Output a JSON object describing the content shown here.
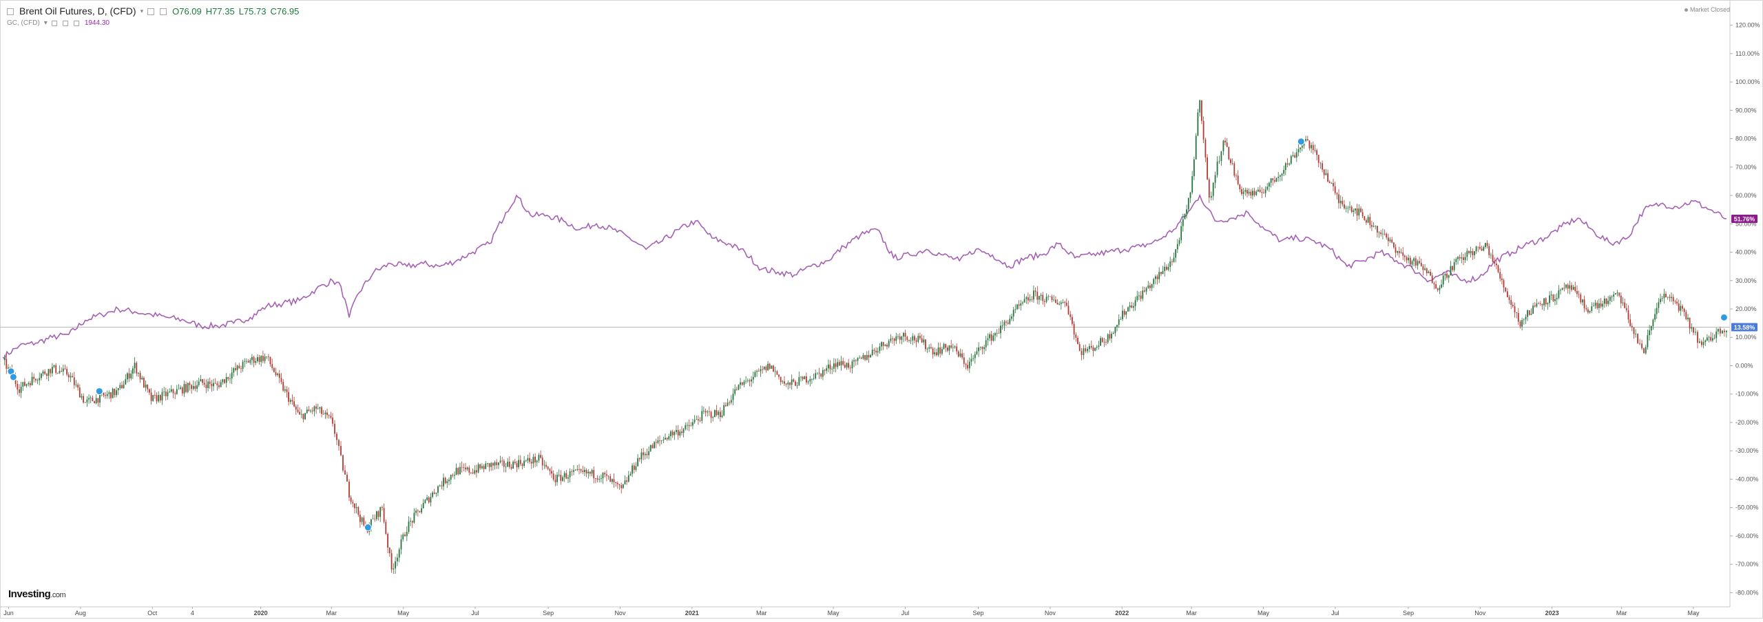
{
  "legend": {
    "title": "Brent Oil Futures, D, (CFD)",
    "open": "O76.09",
    "high": "H77.35",
    "low": "L75.73",
    "close": "C76.95",
    "gold_name": "GC, (CFD)",
    "gold_value": "1944.30"
  },
  "market_status": "Market Closed",
  "brand": {
    "name": "Investing",
    "suffix": ".com"
  },
  "chart_data": {
    "type": "line",
    "title": "",
    "xlabel": "",
    "ylabel": "",
    "y_unit": "%",
    "ylim": [
      -85,
      125
    ],
    "y_ticks": [
      120,
      110,
      100,
      90,
      80,
      70,
      60,
      50,
      40,
      30,
      20,
      10,
      0,
      -10,
      -20,
      -30,
      -40,
      -50,
      -60,
      -70,
      -80
    ],
    "x_range": [
      "2019-05-27",
      "2023-06-01"
    ],
    "x_ticks": [
      {
        "label": "Jun",
        "date": "2019-06-01"
      },
      {
        "label": "Aug",
        "date": "2019-08-01"
      },
      {
        "label": "Oct",
        "date": "2019-10-01"
      },
      {
        "label": "4",
        "date": "2019-11-04"
      },
      {
        "label": "2020",
        "date": "2020-01-01"
      },
      {
        "label": "Mar",
        "date": "2020-03-01"
      },
      {
        "label": "May",
        "date": "2020-05-01"
      },
      {
        "label": "Jul",
        "date": "2020-07-01"
      },
      {
        "label": "Sep",
        "date": "2020-09-01"
      },
      {
        "label": "Nov",
        "date": "2020-11-01"
      },
      {
        "label": "2021",
        "date": "2021-01-01"
      },
      {
        "label": "Mar",
        "date": "2021-03-01"
      },
      {
        "label": "May",
        "date": "2021-05-01"
      },
      {
        "label": "Jul",
        "date": "2021-07-01"
      },
      {
        "label": "Sep",
        "date": "2021-09-01"
      },
      {
        "label": "Nov",
        "date": "2021-11-01"
      },
      {
        "label": "2022",
        "date": "2022-01-01"
      },
      {
        "label": "Mar",
        "date": "2022-03-01"
      },
      {
        "label": "May",
        "date": "2022-05-01"
      },
      {
        "label": "Jul",
        "date": "2022-07-01"
      },
      {
        "label": "Sep",
        "date": "2022-09-01"
      },
      {
        "label": "Nov",
        "date": "2022-11-01"
      },
      {
        "label": "2023",
        "date": "2023-01-01"
      },
      {
        "label": "Mar",
        "date": "2023-03-01"
      },
      {
        "label": "May",
        "date": "2023-05-01"
      }
    ],
    "baseline": 13.58,
    "last_labels": [
      {
        "text": "51.76%",
        "value": 51.76,
        "color": "#8e1b8c"
      },
      {
        "text": "13.58%",
        "value": 13.58,
        "color": "#4a7bd8"
      }
    ],
    "series": [
      {
        "key": "gold",
        "style": "line",
        "color": "#a461b4",
        "points": [
          [
            "2019-05-27",
            3
          ],
          [
            "2019-06-10",
            7
          ],
          [
            "2019-06-24",
            8
          ],
          [
            "2019-07-08",
            10
          ],
          [
            "2019-07-22",
            11
          ],
          [
            "2019-08-05",
            16
          ],
          [
            "2019-08-19",
            18
          ],
          [
            "2019-09-02",
            20
          ],
          [
            "2019-09-16",
            19
          ],
          [
            "2019-09-30",
            18
          ],
          [
            "2019-10-14",
            17
          ],
          [
            "2019-10-28",
            16
          ],
          [
            "2019-11-11",
            14
          ],
          [
            "2019-11-25",
            14
          ],
          [
            "2019-12-09",
            15
          ],
          [
            "2019-12-23",
            17
          ],
          [
            "2020-01-06",
            21
          ],
          [
            "2020-01-20",
            22
          ],
          [
            "2020-02-03",
            23
          ],
          [
            "2020-02-17",
            27
          ],
          [
            "2020-03-02",
            30
          ],
          [
            "2020-03-09",
            28
          ],
          [
            "2020-03-16",
            17
          ],
          [
            "2020-03-23",
            25
          ],
          [
            "2020-04-06",
            33
          ],
          [
            "2020-04-20",
            36
          ],
          [
            "2020-05-04",
            35
          ],
          [
            "2020-05-18",
            36
          ],
          [
            "2020-06-01",
            35
          ],
          [
            "2020-06-15",
            37
          ],
          [
            "2020-06-29",
            40
          ],
          [
            "2020-07-13",
            43
          ],
          [
            "2020-07-27",
            54
          ],
          [
            "2020-08-05",
            60
          ],
          [
            "2020-08-17",
            53
          ],
          [
            "2020-08-31",
            53
          ],
          [
            "2020-09-14",
            51
          ],
          [
            "2020-09-28",
            48
          ],
          [
            "2020-10-12",
            50
          ],
          [
            "2020-10-26",
            48
          ],
          [
            "2020-11-09",
            45
          ],
          [
            "2020-11-23",
            41
          ],
          [
            "2020-12-07",
            44
          ],
          [
            "2020-12-21",
            48
          ],
          [
            "2021-01-04",
            51
          ],
          [
            "2021-01-18",
            45
          ],
          [
            "2021-02-01",
            43
          ],
          [
            "2021-02-15",
            40
          ],
          [
            "2021-03-01",
            34
          ],
          [
            "2021-03-15",
            33
          ],
          [
            "2021-03-29",
            32
          ],
          [
            "2021-04-12",
            35
          ],
          [
            "2021-04-26",
            37
          ],
          [
            "2021-05-10",
            42
          ],
          [
            "2021-05-24",
            46
          ],
          [
            "2021-06-07",
            48
          ],
          [
            "2021-06-21",
            38
          ],
          [
            "2021-07-05",
            39
          ],
          [
            "2021-07-19",
            41
          ],
          [
            "2021-08-02",
            39
          ],
          [
            "2021-08-16",
            37
          ],
          [
            "2021-08-30",
            41
          ],
          [
            "2021-09-13",
            39
          ],
          [
            "2021-09-27",
            35
          ],
          [
            "2021-10-11",
            38
          ],
          [
            "2021-10-25",
            39
          ],
          [
            "2021-11-08",
            43
          ],
          [
            "2021-11-22",
            38
          ],
          [
            "2021-12-06",
            39
          ],
          [
            "2021-12-20",
            40
          ],
          [
            "2022-01-03",
            41
          ],
          [
            "2022-01-17",
            42
          ],
          [
            "2022-01-31",
            44
          ],
          [
            "2022-02-14",
            48
          ],
          [
            "2022-02-28",
            55
          ],
          [
            "2022-03-08",
            60
          ],
          [
            "2022-03-21",
            51
          ],
          [
            "2022-04-04",
            52
          ],
          [
            "2022-04-18",
            54
          ],
          [
            "2022-05-02",
            48
          ],
          [
            "2022-05-16",
            44
          ],
          [
            "2022-05-30",
            45
          ],
          [
            "2022-06-13",
            44
          ],
          [
            "2022-06-27",
            41
          ],
          [
            "2022-07-11",
            35
          ],
          [
            "2022-07-25",
            37
          ],
          [
            "2022-08-08",
            40
          ],
          [
            "2022-08-22",
            37
          ],
          [
            "2022-09-05",
            34
          ],
          [
            "2022-09-19",
            30
          ],
          [
            "2022-10-03",
            33
          ],
          [
            "2022-10-17",
            30
          ],
          [
            "2022-10-31",
            31
          ],
          [
            "2022-11-14",
            37
          ],
          [
            "2022-11-28",
            40
          ],
          [
            "2022-12-12",
            43
          ],
          [
            "2022-12-26",
            45
          ],
          [
            "2023-01-09",
            49
          ],
          [
            "2023-01-23",
            52
          ],
          [
            "2023-02-06",
            47
          ],
          [
            "2023-02-20",
            43
          ],
          [
            "2023-03-06",
            45
          ],
          [
            "2023-03-20",
            55
          ],
          [
            "2023-04-03",
            57
          ],
          [
            "2023-04-17",
            56
          ],
          [
            "2023-05-01",
            58
          ],
          [
            "2023-05-15",
            55
          ],
          [
            "2023-05-29",
            51.76
          ]
        ]
      },
      {
        "key": "brent",
        "style": "candles",
        "up_color": "#26733b",
        "down_color": "#b23a32",
        "points": [
          [
            "2019-05-27",
            2
          ],
          [
            "2019-06-10",
            -8
          ],
          [
            "2019-06-24",
            -4
          ],
          [
            "2019-07-08",
            -1
          ],
          [
            "2019-07-22",
            -3
          ],
          [
            "2019-08-05",
            -13
          ],
          [
            "2019-08-19",
            -11
          ],
          [
            "2019-09-02",
            -9
          ],
          [
            "2019-09-16",
            0
          ],
          [
            "2019-09-30",
            -12
          ],
          [
            "2019-10-14",
            -10
          ],
          [
            "2019-10-28",
            -8
          ],
          [
            "2019-11-11",
            -6
          ],
          [
            "2019-11-25",
            -7
          ],
          [
            "2019-12-09",
            -2
          ],
          [
            "2019-12-23",
            2
          ],
          [
            "2020-01-06",
            3
          ],
          [
            "2020-01-20",
            -8
          ],
          [
            "2020-02-03",
            -18
          ],
          [
            "2020-02-17",
            -15
          ],
          [
            "2020-03-02",
            -20
          ],
          [
            "2020-03-09",
            -33
          ],
          [
            "2020-03-16",
            -45
          ],
          [
            "2020-03-30",
            -58
          ],
          [
            "2020-04-13",
            -50
          ],
          [
            "2020-04-21",
            -72
          ],
          [
            "2020-05-04",
            -57
          ],
          [
            "2020-05-18",
            -49
          ],
          [
            "2020-06-01",
            -42
          ],
          [
            "2020-06-15",
            -37
          ],
          [
            "2020-06-29",
            -37
          ],
          [
            "2020-07-13",
            -35
          ],
          [
            "2020-07-27",
            -35
          ],
          [
            "2020-08-10",
            -34
          ],
          [
            "2020-08-24",
            -33
          ],
          [
            "2020-09-07",
            -40
          ],
          [
            "2020-09-21",
            -38
          ],
          [
            "2020-10-05",
            -38
          ],
          [
            "2020-10-19",
            -39
          ],
          [
            "2020-11-02",
            -44
          ],
          [
            "2020-11-16",
            -33
          ],
          [
            "2020-11-30",
            -28
          ],
          [
            "2020-12-14",
            -24
          ],
          [
            "2020-12-28",
            -22
          ],
          [
            "2021-01-11",
            -17
          ],
          [
            "2021-01-25",
            -17
          ],
          [
            "2021-02-08",
            -8
          ],
          [
            "2021-02-22",
            -4
          ],
          [
            "2021-03-08",
            0
          ],
          [
            "2021-03-22",
            -7
          ],
          [
            "2021-04-05",
            -5
          ],
          [
            "2021-04-19",
            -3
          ],
          [
            "2021-05-03",
            1
          ],
          [
            "2021-05-17",
            0
          ],
          [
            "2021-05-31",
            4
          ],
          [
            "2021-06-14",
            8
          ],
          [
            "2021-06-28",
            11
          ],
          [
            "2021-07-12",
            9
          ],
          [
            "2021-07-26",
            5
          ],
          [
            "2021-08-09",
            7
          ],
          [
            "2021-08-23",
            0
          ],
          [
            "2021-09-06",
            8
          ],
          [
            "2021-09-20",
            13
          ],
          [
            "2021-10-04",
            20
          ],
          [
            "2021-10-18",
            25
          ],
          [
            "2021-11-01",
            23
          ],
          [
            "2021-11-15",
            22
          ],
          [
            "2021-11-26",
            5
          ],
          [
            "2021-12-06",
            6
          ],
          [
            "2021-12-20",
            10
          ],
          [
            "2022-01-03",
            19
          ],
          [
            "2022-01-17",
            25
          ],
          [
            "2022-01-31",
            31
          ],
          [
            "2022-02-14",
            38
          ],
          [
            "2022-02-28",
            60
          ],
          [
            "2022-03-08",
            95
          ],
          [
            "2022-03-16",
            58
          ],
          [
            "2022-03-28",
            80
          ],
          [
            "2022-04-11",
            62
          ],
          [
            "2022-04-25",
            60
          ],
          [
            "2022-05-09",
            65
          ],
          [
            "2022-05-23",
            72
          ],
          [
            "2022-06-06",
            80
          ],
          [
            "2022-06-20",
            70
          ],
          [
            "2022-07-04",
            58
          ],
          [
            "2022-07-18",
            55
          ],
          [
            "2022-08-01",
            50
          ],
          [
            "2022-08-15",
            44
          ],
          [
            "2022-08-29",
            38
          ],
          [
            "2022-09-12",
            35
          ],
          [
            "2022-09-26",
            28
          ],
          [
            "2022-10-10",
            36
          ],
          [
            "2022-10-24",
            40
          ],
          [
            "2022-11-07",
            42
          ],
          [
            "2022-11-21",
            28
          ],
          [
            "2022-12-05",
            15
          ],
          [
            "2022-12-19",
            22
          ],
          [
            "2023-01-02",
            24
          ],
          [
            "2023-01-16",
            28
          ],
          [
            "2023-01-30",
            20
          ],
          [
            "2023-02-13",
            22
          ],
          [
            "2023-02-27",
            25
          ],
          [
            "2023-03-13",
            10
          ],
          [
            "2023-03-20",
            5
          ],
          [
            "2023-04-03",
            25
          ],
          [
            "2023-04-17",
            22
          ],
          [
            "2023-05-01",
            12
          ],
          [
            "2023-05-08",
            7
          ],
          [
            "2023-05-22",
            12
          ],
          [
            "2023-05-29",
            13.58
          ]
        ]
      }
    ],
    "event_markers": [
      {
        "date": "2019-06-03",
        "value": -2
      },
      {
        "date": "2019-06-05",
        "value": -4
      },
      {
        "date": "2019-08-17",
        "value": -9
      },
      {
        "date": "2020-04-01",
        "value": -57
      },
      {
        "date": "2022-06-02",
        "value": 79
      },
      {
        "date": "2023-05-27",
        "value": 17
      }
    ]
  }
}
